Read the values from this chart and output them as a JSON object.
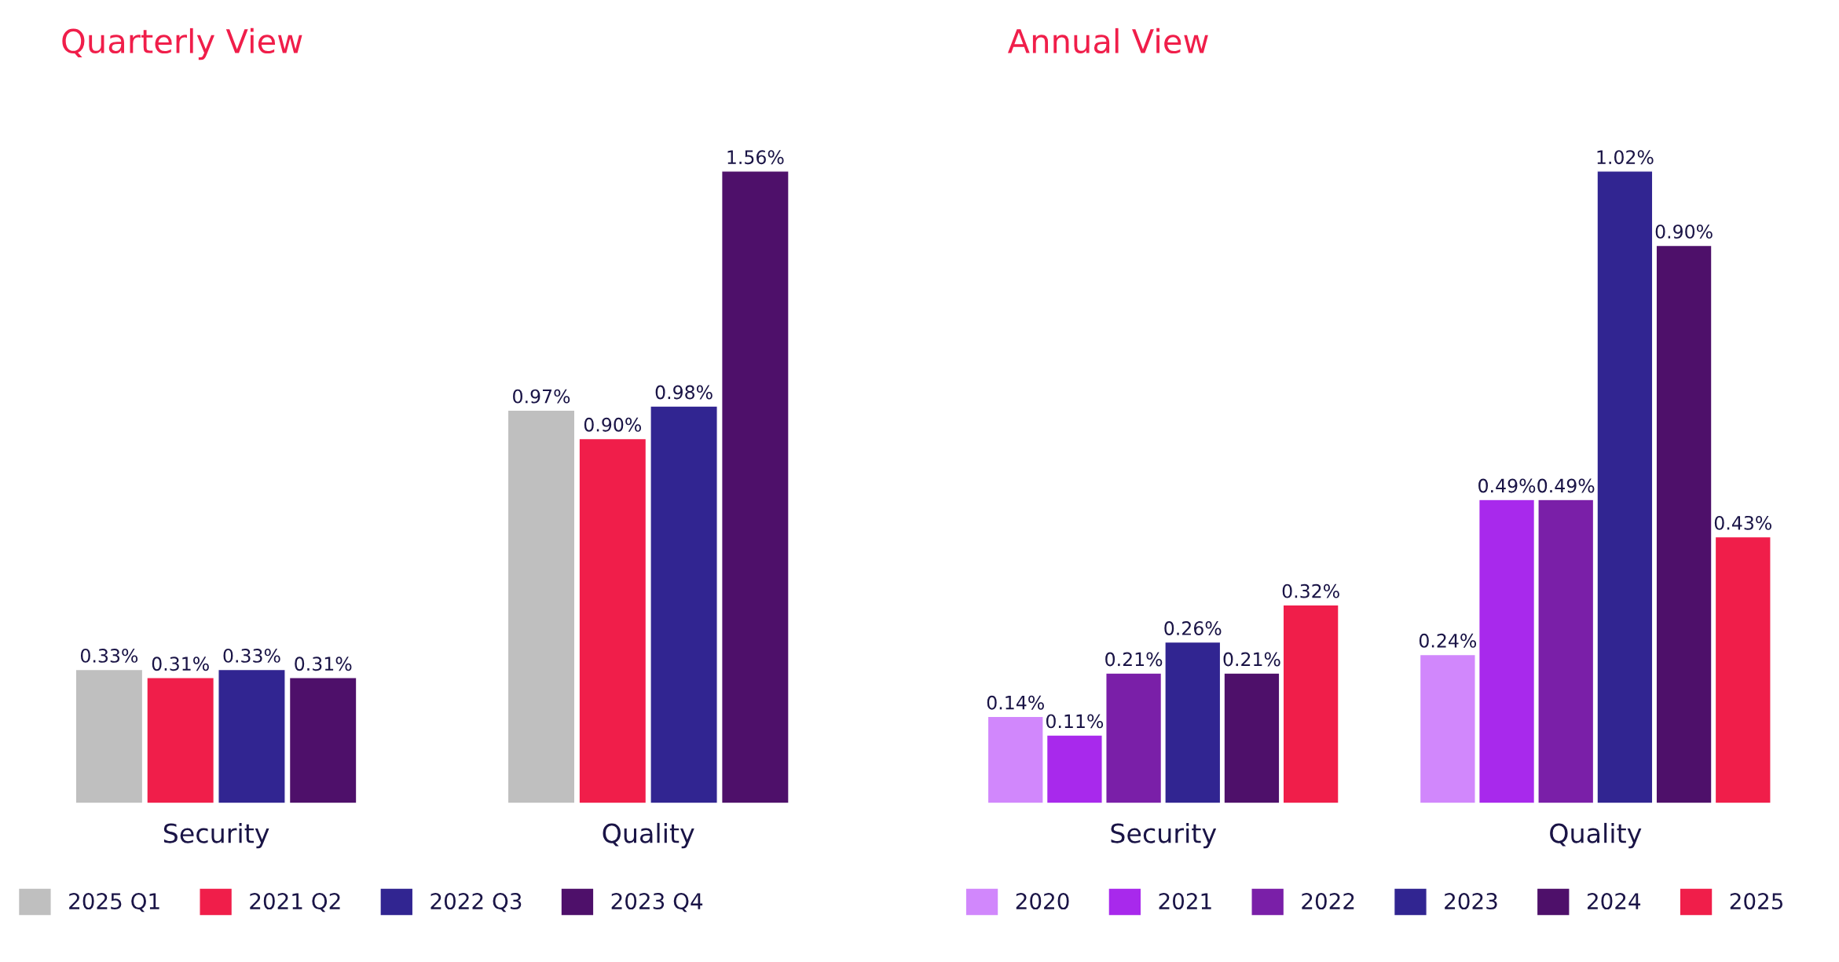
{
  "chart_data": [
    {
      "type": "bar",
      "title": "Quarterly View",
      "categories": [
        "Security",
        "Quality"
      ],
      "legend": "bottom",
      "grid": false,
      "series": [
        {
          "name": "2025 Q1",
          "color": "#bfbfbf",
          "values": [
            0.33,
            0.97
          ],
          "value_labels": [
            "0.33%",
            "0.97%"
          ]
        },
        {
          "name": "2021 Q2",
          "color": "#f01e4a",
          "values": [
            0.31,
            0.9
          ],
          "value_labels": [
            "0.31%",
            "0.90%"
          ]
        },
        {
          "name": "2022 Q3",
          "color": "#312591",
          "values": [
            0.33,
            0.98
          ],
          "value_labels": [
            "0.33%",
            "0.98%"
          ]
        },
        {
          "name": "2023 Q4",
          "color": "#4e106a",
          "values": [
            0.31,
            1.56
          ],
          "value_labels": [
            "0.31%",
            "1.56%"
          ]
        }
      ]
    },
    {
      "type": "bar",
      "title": "Annual View",
      "categories": [
        "Security",
        "Quality"
      ],
      "legend": "bottom",
      "grid": false,
      "series": [
        {
          "name": "2020",
          "color": "#d187fc",
          "values": [
            0.14,
            0.24
          ],
          "value_labels": [
            "0.14%",
            "0.24%"
          ]
        },
        {
          "name": "2021",
          "color": "#a829ec",
          "values": [
            0.11,
            0.49
          ],
          "value_labels": [
            "0.11%",
            "0.49%"
          ]
        },
        {
          "name": "2022",
          "color": "#7a1fa8",
          "values": [
            0.21,
            0.49
          ],
          "value_labels": [
            "0.21%",
            "0.49%"
          ]
        },
        {
          "name": "2023",
          "color": "#312591",
          "values": [
            0.26,
            1.02
          ],
          "value_labels": [
            "0.26%",
            "1.02%"
          ]
        },
        {
          "name": "2024",
          "color": "#4e106a",
          "values": [
            0.21,
            0.9
          ],
          "value_labels": [
            "0.21%",
            "0.90%"
          ]
        },
        {
          "name": "2025",
          "color": "#f01e4a",
          "values": [
            0.32,
            0.43
          ],
          "value_labels": [
            "0.32%",
            "0.43%"
          ]
        }
      ]
    }
  ]
}
